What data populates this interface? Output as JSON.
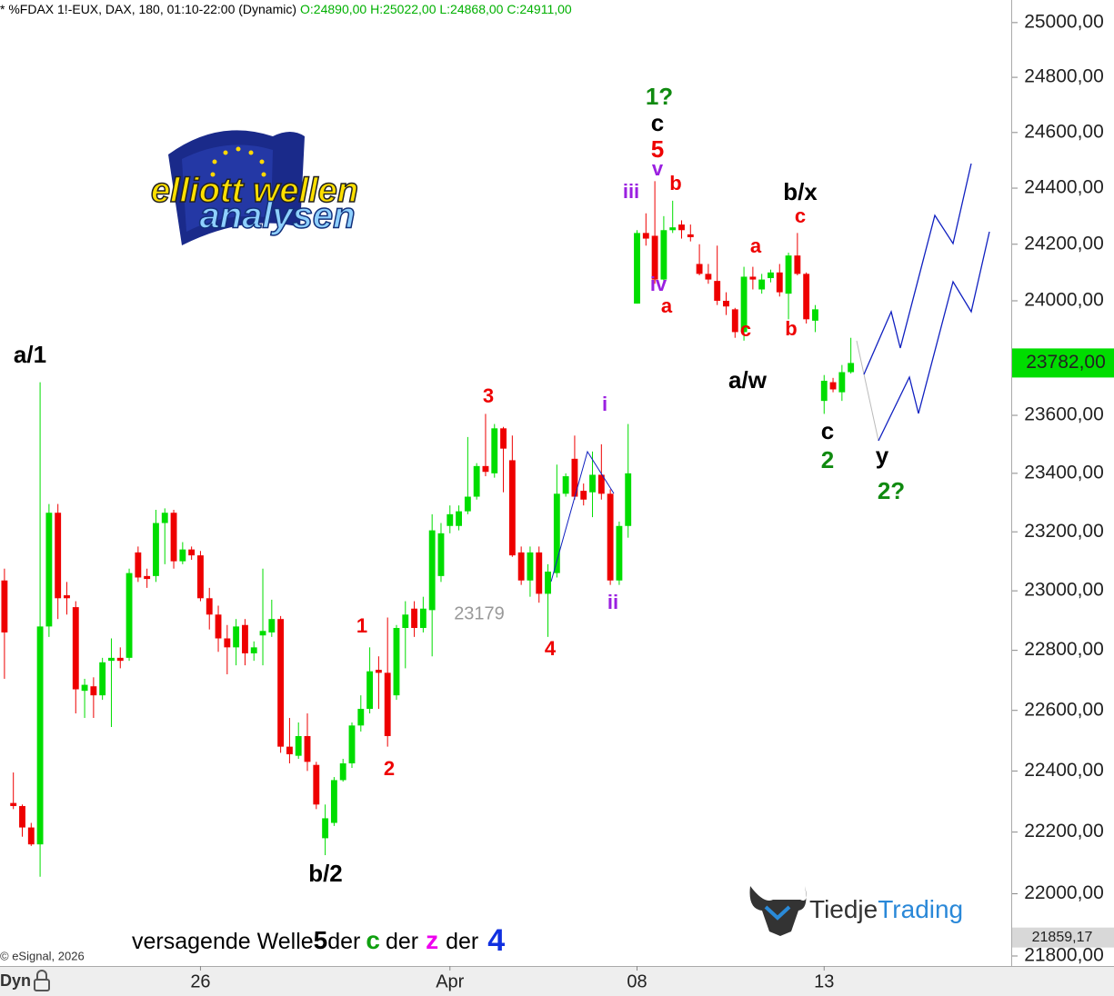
{
  "chart_data": {
    "type": "candlestick",
    "title": "* %FDAX 1!-EUX, DAX, 180, 01:10-22:00 (Dynamic)",
    "subtitle": "O:24890,00 H:25022,00 L:24868,00 C:24911,00",
    "log": true,
    "grid": false,
    "up_color": "#00dd00",
    "down_color": "#ee0000",
    "open": [
      23035,
      22295,
      22285,
      22215,
      22160,
      22880,
      23265,
      22985,
      22945,
      22665,
      22680,
      22650,
      22765,
      22775,
      22775,
      23130,
      23050,
      23050,
      23230,
      23265,
      23100,
      23140,
      23120,
      22975,
      22920,
      22840,
      22810,
      22885,
      22790,
      22850,
      22860,
      22905,
      22480,
      22450,
      22515,
      22420,
      22180,
      22230,
      22370,
      22425,
      22550,
      22605,
      22735,
      22725,
      22650,
      22875,
      22940,
      22875,
      22935,
      23050,
      23220,
      23220,
      23270,
      23320,
      23425,
      23400,
      23555,
      23445,
      23130,
      23035,
      23130,
      22990,
      23060,
      23330,
      23450,
      23340,
      23335,
      23395,
      23330,
      23035,
      23220,
      23990,
      24240,
      24230,
      24075,
      24250,
      24270,
      24235,
      24130,
      24095,
      24070,
      24000,
      23970,
      23890,
      24085,
      24040,
      24080,
      24100,
      24025,
      24160,
      24095,
      23930,
      23650,
      23715,
      23680,
      23750
    ],
    "high": [
      23075,
      22395,
      22290,
      22230,
      23715,
      23295,
      23295,
      23030,
      22965,
      22705,
      22710,
      22775,
      22840,
      22810,
      23075,
      23150,
      23075,
      23275,
      23280,
      23275,
      23165,
      23150,
      23135,
      23010,
      22950,
      22885,
      22905,
      22905,
      22830,
      23075,
      22970,
      22915,
      22575,
      22560,
      22590,
      22430,
      22290,
      22380,
      22440,
      22560,
      22650,
      22810,
      22780,
      22910,
      22885,
      22965,
      22965,
      22980,
      23260,
      23230,
      23290,
      23290,
      23525,
      23435,
      23605,
      23570,
      23560,
      23530,
      23150,
      23150,
      23150,
      23090,
      23430,
      23400,
      23530,
      23365,
      23475,
      23500,
      23345,
      23235,
      23570,
      24250,
      24310,
      24425,
      24300,
      24355,
      24285,
      24270,
      24200,
      24130,
      24195,
      24030,
      23975,
      24120,
      24120,
      24095,
      24110,
      24130,
      24170,
      24240,
      24100,
      23985,
      23740,
      23730,
      23775,
      23870
    ],
    "low": [
      22705,
      22275,
      22185,
      22155,
      22055,
      22845,
      22905,
      22920,
      22590,
      22575,
      22575,
      22635,
      22545,
      22740,
      22765,
      23030,
      23010,
      23030,
      23090,
      23075,
      23090,
      23105,
      22965,
      22870,
      22795,
      22720,
      22750,
      22750,
      22765,
      22750,
      22845,
      22460,
      22425,
      22440,
      22400,
      22275,
      22125,
      22220,
      22365,
      22410,
      22530,
      22590,
      22605,
      22480,
      22635,
      22740,
      22845,
      22860,
      22780,
      23030,
      23195,
      23205,
      23260,
      23310,
      23390,
      23385,
      23335,
      23115,
      23020,
      22980,
      22960,
      22845,
      23045,
      23320,
      23310,
      23290,
      23250,
      23310,
      23020,
      23020,
      23180,
      23990,
      24195,
      24060,
      24065,
      24240,
      24220,
      24210,
      24090,
      24060,
      23985,
      23950,
      23870,
      23860,
      24040,
      24025,
      24065,
      24015,
      23935,
      24090,
      23920,
      23890,
      23605,
      23680,
      23650,
      23745
    ],
    "close": [
      22860,
      22285,
      22215,
      22160,
      22880,
      23265,
      22975,
      22975,
      22670,
      22685,
      22650,
      22760,
      22775,
      22765,
      23060,
      23045,
      23040,
      23230,
      23265,
      23100,
      23140,
      23120,
      22975,
      22920,
      22840,
      22810,
      22880,
      22790,
      22810,
      22865,
      22905,
      22480,
      22455,
      22515,
      22430,
      22290,
      22245,
      22370,
      22425,
      22550,
      22605,
      22730,
      22725,
      22515,
      22875,
      22920,
      22875,
      22940,
      23205,
      23195,
      23260,
      23270,
      23320,
      23425,
      23405,
      23555,
      23485,
      23120,
      23035,
      23130,
      22990,
      23065,
      23330,
      23390,
      23320,
      23310,
      23395,
      23330,
      23035,
      23220,
      23400,
      24240,
      24220,
      24075,
      24250,
      24260,
      24250,
      24225,
      24095,
      24075,
      24000,
      23980,
      23890,
      24085,
      24075,
      24075,
      24100,
      24030,
      24160,
      24095,
      23935,
      23970,
      23720,
      23690,
      23750,
      23782
    ],
    "xlim": [
      -0.5,
      113
    ],
    "xticks": [
      {
        "value": 22,
        "label": "26"
      },
      {
        "value": 50,
        "label": "Apr"
      },
      {
        "value": 71,
        "label": "08"
      },
      {
        "value": 92,
        "label": "13"
      }
    ],
    "ylim": [
      21768,
      25083
    ],
    "yticks": [
      {
        "value": 21800,
        "label": "21800,00"
      },
      {
        "value": 22000,
        "label": "22000,00"
      },
      {
        "value": 22200,
        "label": "22200,00"
      },
      {
        "value": 22400,
        "label": "22400,00"
      },
      {
        "value": 22600,
        "label": "22600,00"
      },
      {
        "value": 22800,
        "label": "22800,00"
      },
      {
        "value": 23000,
        "label": "23000,00"
      },
      {
        "value": 23200,
        "label": "23200,00"
      },
      {
        "value": 23400,
        "label": "23400,00"
      },
      {
        "value": 23600,
        "label": "23600,00"
      },
      {
        "value": 23800,
        "label": "23800,00"
      },
      {
        "value": 24000,
        "label": "24000,00"
      },
      {
        "value": 24200,
        "label": "24200,00"
      },
      {
        "value": 24400,
        "label": "24400,00"
      },
      {
        "value": 24600,
        "label": "24600,00"
      },
      {
        "value": 24800,
        "label": "24800,00"
      },
      {
        "value": 25000,
        "label": "25000,00"
      }
    ],
    "last_price": {
      "value": 23782,
      "label": "23782,00"
    },
    "cursor_price": {
      "value": 21859.17,
      "label": "21859,17"
    },
    "annotations": [
      {
        "text": "a/1",
        "color": "#000000"
      },
      {
        "text": "b/2",
        "color": "#000000"
      },
      {
        "text": "1",
        "color": "#ee0000"
      },
      {
        "text": "2",
        "color": "#ee0000"
      },
      {
        "text": "3",
        "color": "#ee0000"
      },
      {
        "text": "4",
        "color": "#ee0000"
      },
      {
        "text": "23179",
        "color": "#999999"
      },
      {
        "text": "i",
        "color": "#9a1fe0"
      },
      {
        "text": "ii",
        "color": "#9a1fe0"
      },
      {
        "text": "iii",
        "color": "#9a1fe0"
      },
      {
        "text": "iv",
        "color": "#9a1fe0"
      },
      {
        "text": "v",
        "color": "#9a1fe0"
      },
      {
        "text": "a",
        "color": "#ee0000"
      },
      {
        "text": "b",
        "color": "#ee0000"
      },
      {
        "text": "5",
        "color": "#ee0000"
      },
      {
        "text": "c",
        "color": "#000000"
      },
      {
        "text": "1?",
        "color": "#108a10"
      },
      {
        "text": "c",
        "color": "#ee0000"
      },
      {
        "text": "b/x",
        "color": "#000000"
      },
      {
        "text": "a",
        "color": "#ee0000"
      },
      {
        "text": "c",
        "color": "#ee0000"
      },
      {
        "text": "b",
        "color": "#ee0000"
      },
      {
        "text": "a/w",
        "color": "#000000"
      },
      {
        "text": "c",
        "color": "#000000"
      },
      {
        "text": "2",
        "color": "#108a10"
      },
      {
        "text": "y",
        "color": "#000000"
      },
      {
        "text": "2?",
        "color": "#108a10"
      }
    ],
    "footer": [
      {
        "text": "versagende Welle",
        "color": "#000000"
      },
      {
        "text": "5",
        "color": "#000000"
      },
      {
        "text": "der",
        "color": "#000000"
      },
      {
        "text": "c",
        "color": "#10a010"
      },
      {
        "text": "der",
        "color": "#000000"
      },
      {
        "text": "z",
        "color": "#ee00ee"
      },
      {
        "text": "der",
        "color": "#000000"
      },
      {
        "text": "4",
        "color": "#1030e0"
      }
    ],
    "copyright": "© eSignal, 2026",
    "mode": "Dyn",
    "logo_top": "elliott wellen",
    "logo_bottom": "analysen",
    "brand_a": "Tiedje",
    "brand_b": "Trading"
  }
}
